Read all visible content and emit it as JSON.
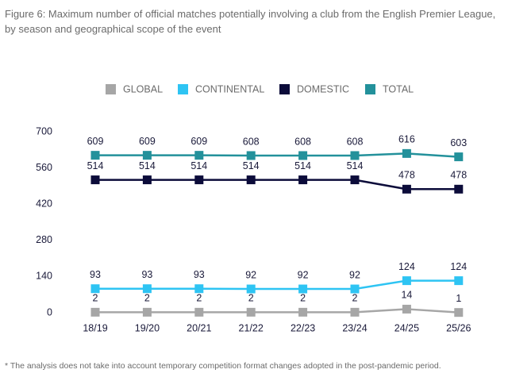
{
  "chart_data": {
    "type": "line",
    "title": "Figure 6: Maximum number of official matches potentially involving a club from the English Premier League, by season and geographical scope of the event",
    "categories": [
      "18/19",
      "19/20",
      "20/21",
      "21/22",
      "22/23",
      "23/24",
      "24/25",
      "25/26"
    ],
    "series": [
      {
        "name": "GLOBAL",
        "color": "#a6a6a6",
        "values": [
          2,
          2,
          2,
          2,
          2,
          2,
          14,
          1
        ]
      },
      {
        "name": "CONTINENTAL",
        "color": "#2ec4f3",
        "values": [
          93,
          93,
          93,
          92,
          92,
          92,
          124,
          124
        ]
      },
      {
        "name": "DOMESTIC",
        "color": "#0c0c3a",
        "values": [
          514,
          514,
          514,
          514,
          514,
          514,
          478,
          478
        ]
      },
      {
        "name": "TOTAL",
        "color": "#23919b",
        "values": [
          609,
          609,
          609,
          608,
          608,
          608,
          616,
          603
        ]
      }
    ],
    "ylim": [
      0,
      700
    ],
    "yticks": [
      0,
      140,
      280,
      420,
      560,
      700
    ],
    "footnote": "* The analysis does not take into account temporary competition format changes adopted in the post-pandemic period."
  }
}
